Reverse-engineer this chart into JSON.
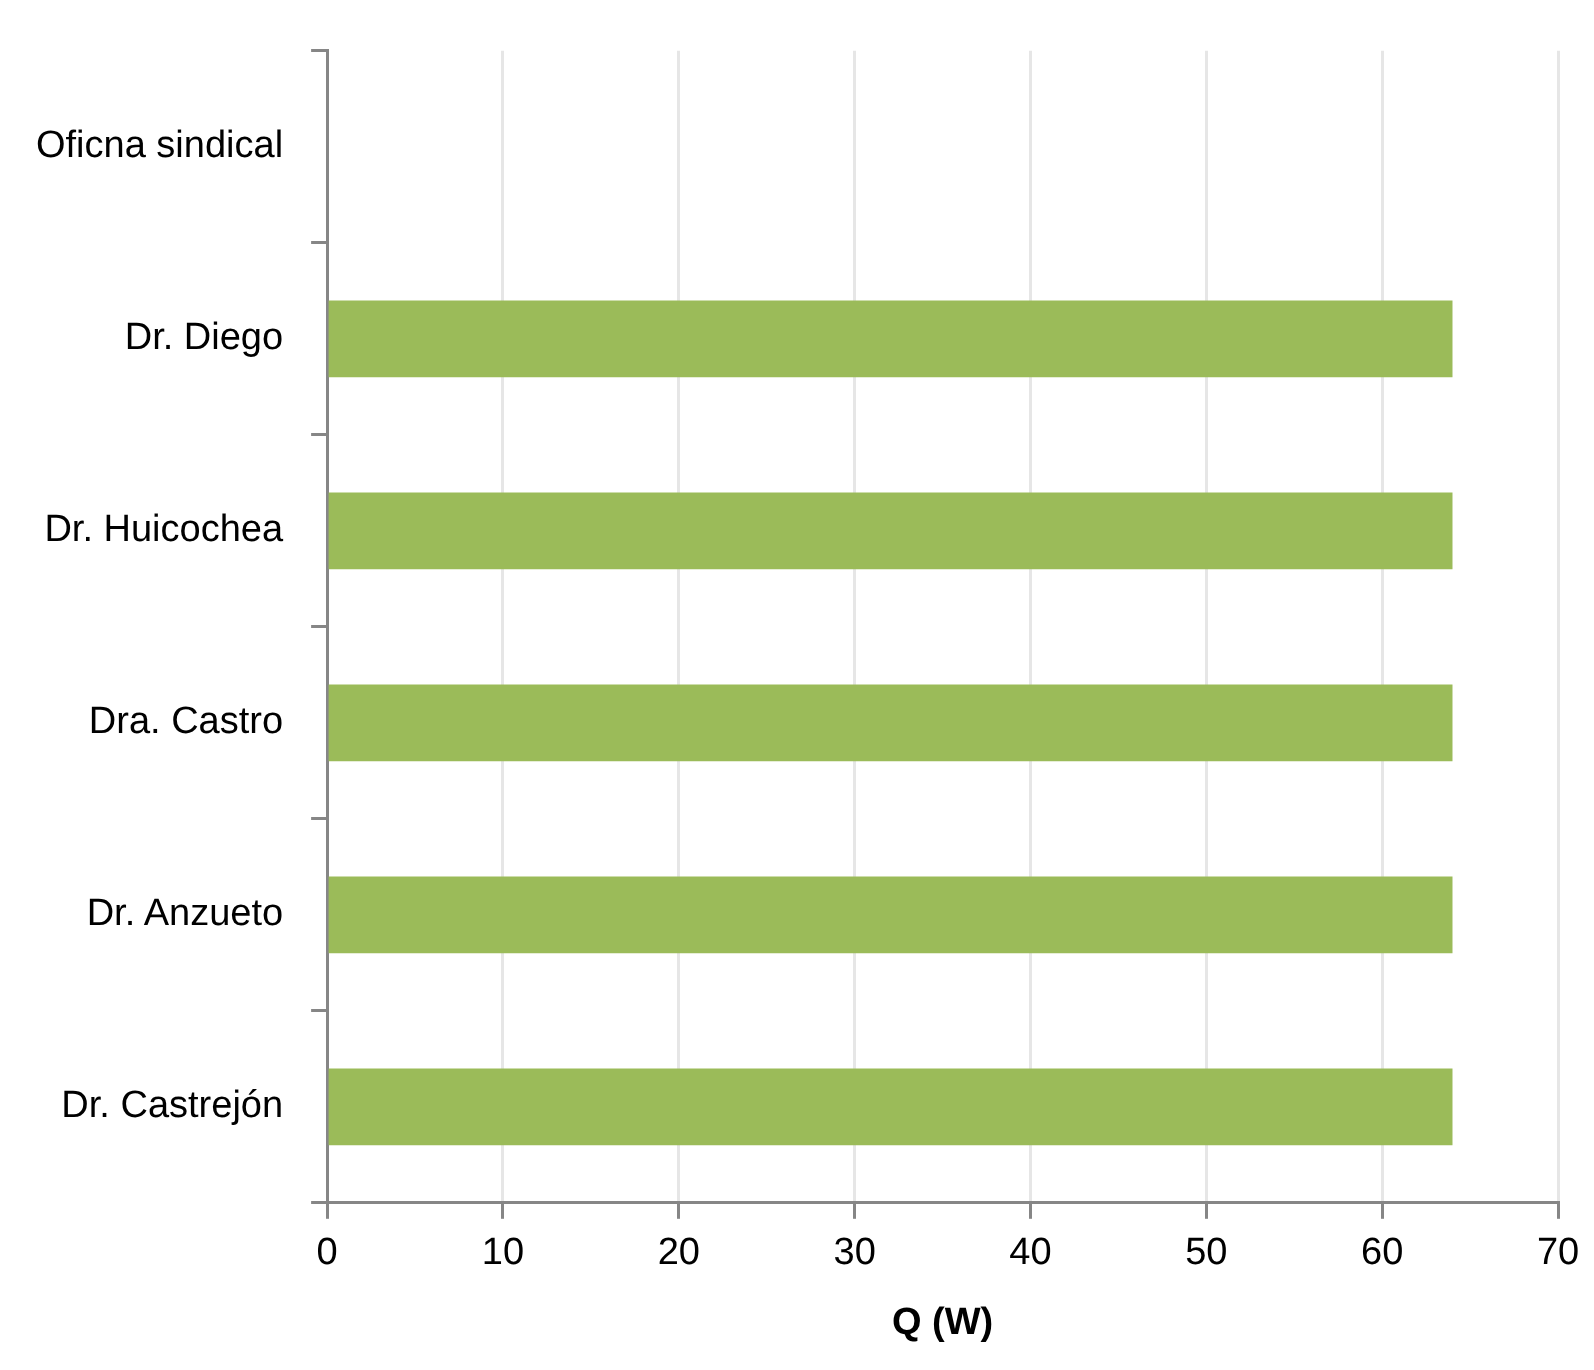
{
  "chart_data": {
    "type": "bar",
    "orientation": "horizontal",
    "xlabel": "Q (W)",
    "categories": [
      "Oficna sindical",
      "Dr. Diego",
      "Dr. Huicochea",
      "Dra. Castro",
      "Dr. Anzueto",
      "Dr. Castrejón"
    ],
    "values": [
      0,
      64,
      64,
      64,
      64,
      64
    ],
    "color": "#9bbb59",
    "xlim": [
      0,
      70
    ],
    "xticks": [
      0,
      10,
      20,
      30,
      40,
      50,
      60,
      70
    ],
    "grid": "x",
    "legend": false
  }
}
